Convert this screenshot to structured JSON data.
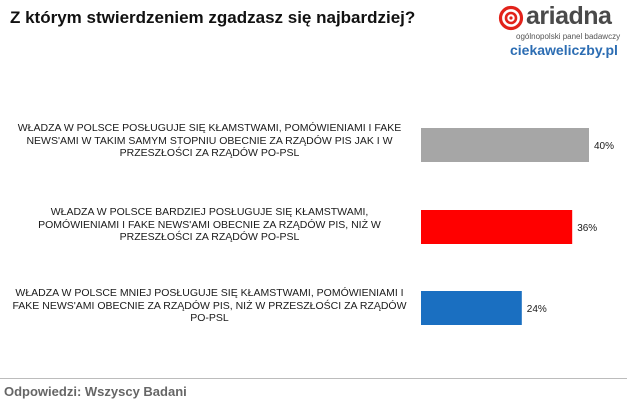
{
  "question": "Z którym stwierdzeniem zgadzasz się najbardziej?",
  "logo": {
    "word": "ariadna",
    "tagline": "ogólnopolski panel badawczy",
    "icon": "ariadna-logo-icon",
    "color": "#e2221a"
  },
  "site": "ciekaweliczby.pl",
  "footer": "Odpowiedzi: Wszyscy Badani",
  "chart_data": {
    "type": "bar",
    "orientation": "horizontal",
    "categories": [
      "Władza w Polsce posługuje się kłamstwami, pomówieniami i fake news'ami w takim samym stopniu obecnie za rządów PiS jak i w przeszłości za rządów PO-PSL",
      "Władza w Polsce bardziej posługuje się kłamstwami, pomówieniami i fake news'ami obecnie za rządów PiS, niż w przeszłości za rządów PO-PSL",
      "Władza w Polsce mniej posługuje się kłamstwami, pomówieniami i fake news'ami obecnie za rządów PiS, niż w przeszłości za rządów PO-PSL"
    ],
    "values": [
      40,
      36,
      24
    ],
    "value_labels": [
      "40%",
      "36%",
      "24%"
    ],
    "colors": [
      "#a6a6a6",
      "#ff0000",
      "#1a6fc1"
    ],
    "xlim": [
      0,
      100
    ],
    "grid": false
  }
}
